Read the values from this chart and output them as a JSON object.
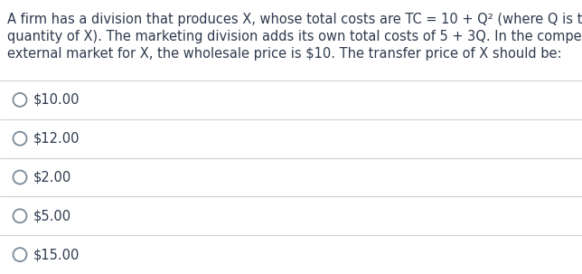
{
  "question_lines": [
    "A firm has a division that produces X, whose total costs are TC = 10 + Q² (where Q is the",
    "quantity of X). The marketing division adds its own total costs of 5 + 3Q. In the competitiv",
    "external market for X, the wholesale price is $10. The transfer price of X should be:"
  ],
  "options": [
    "$10.00",
    "$12.00",
    "$2.00",
    "$5.00",
    "$15.00"
  ],
  "background_color": "#ffffff",
  "text_color": "#2e3a4e",
  "line_color": "#d0d0d0",
  "circle_color": "#7a8a9a",
  "font_size_question": 10.5,
  "font_size_options": 10.5,
  "fig_width": 6.44,
  "fig_height": 3.03,
  "dpi": 100
}
